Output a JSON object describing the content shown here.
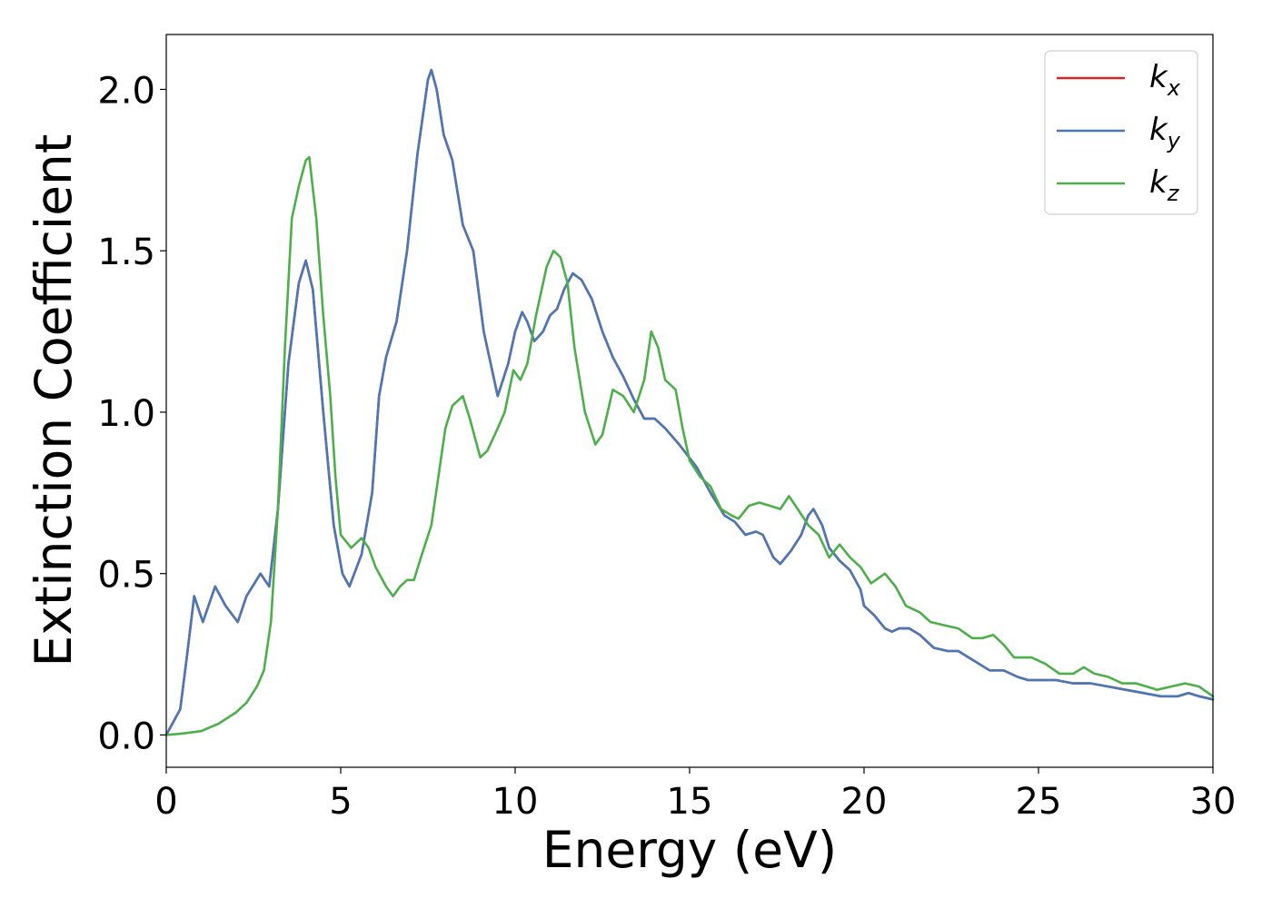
{
  "chart_data": {
    "type": "line",
    "title": "",
    "xlabel": "Energy (eV)",
    "ylabel": "Extinction Coefficient",
    "xlim": [
      0,
      30
    ],
    "ylim": [
      -0.1,
      2.17
    ],
    "xticks": [
      0,
      5,
      10,
      15,
      20,
      25,
      30
    ],
    "xtick_labels": [
      "0",
      "5",
      "10",
      "15",
      "20",
      "25",
      "30"
    ],
    "yticks": [
      0.0,
      0.5,
      1.0,
      1.5,
      2.0
    ],
    "ytick_labels": [
      "0.0",
      "0.5",
      "1.0",
      "1.5",
      "2.0"
    ],
    "grid": false,
    "legend_position": "top-right",
    "series": [
      {
        "name": "k_x",
        "legend_base": "k",
        "legend_sub": "x",
        "color": "#d62728",
        "points": [
          [
            0,
            0
          ],
          [
            0.4,
            0.08
          ],
          [
            0.6,
            0.25
          ],
          [
            0.8,
            0.43
          ],
          [
            1.05,
            0.35
          ],
          [
            1.4,
            0.46
          ],
          [
            1.7,
            0.4
          ],
          [
            2.05,
            0.35
          ],
          [
            2.3,
            0.43
          ],
          [
            2.7,
            0.5
          ],
          [
            2.95,
            0.46
          ],
          [
            3.2,
            0.7
          ],
          [
            3.5,
            1.15
          ],
          [
            3.8,
            1.4
          ],
          [
            4.0,
            1.47
          ],
          [
            4.2,
            1.38
          ],
          [
            4.5,
            1.0
          ],
          [
            4.8,
            0.65
          ],
          [
            5.05,
            0.5
          ],
          [
            5.25,
            0.46
          ],
          [
            5.6,
            0.56
          ],
          [
            5.9,
            0.75
          ],
          [
            6.1,
            1.05
          ],
          [
            6.3,
            1.17
          ],
          [
            6.6,
            1.28
          ],
          [
            6.9,
            1.5
          ],
          [
            7.2,
            1.8
          ],
          [
            7.5,
            2.03
          ],
          [
            7.6,
            2.06
          ],
          [
            7.75,
            2.0
          ],
          [
            7.95,
            1.86
          ],
          [
            8.2,
            1.78
          ],
          [
            8.5,
            1.58
          ],
          [
            8.8,
            1.5
          ],
          [
            9.1,
            1.25
          ],
          [
            9.5,
            1.05
          ],
          [
            9.8,
            1.15
          ],
          [
            10.0,
            1.25
          ],
          [
            10.2,
            1.31
          ],
          [
            10.35,
            1.28
          ],
          [
            10.55,
            1.22
          ],
          [
            10.8,
            1.25
          ],
          [
            11.0,
            1.3
          ],
          [
            11.2,
            1.32
          ],
          [
            11.4,
            1.38
          ],
          [
            11.65,
            1.43
          ],
          [
            11.9,
            1.41
          ],
          [
            12.2,
            1.35
          ],
          [
            12.5,
            1.25
          ],
          [
            12.8,
            1.17
          ],
          [
            13.1,
            1.11
          ],
          [
            13.4,
            1.04
          ],
          [
            13.7,
            0.98
          ],
          [
            14.0,
            0.98
          ],
          [
            14.3,
            0.95
          ],
          [
            14.7,
            0.9
          ],
          [
            15.2,
            0.83
          ],
          [
            15.6,
            0.75
          ],
          [
            16.0,
            0.68
          ],
          [
            16.3,
            0.66
          ],
          [
            16.6,
            0.62
          ],
          [
            16.9,
            0.63
          ],
          [
            17.1,
            0.62
          ],
          [
            17.4,
            0.55
          ],
          [
            17.6,
            0.53
          ],
          [
            17.9,
            0.57
          ],
          [
            18.2,
            0.62
          ],
          [
            18.4,
            0.68
          ],
          [
            18.55,
            0.7
          ],
          [
            18.8,
            0.65
          ],
          [
            19.0,
            0.58
          ],
          [
            19.3,
            0.54
          ],
          [
            19.6,
            0.51
          ],
          [
            19.9,
            0.45
          ],
          [
            20.0,
            0.4
          ],
          [
            20.3,
            0.37
          ],
          [
            20.6,
            0.33
          ],
          [
            20.8,
            0.32
          ],
          [
            21.0,
            0.33
          ],
          [
            21.3,
            0.33
          ],
          [
            21.6,
            0.31
          ],
          [
            22.0,
            0.27
          ],
          [
            22.4,
            0.26
          ],
          [
            22.7,
            0.26
          ],
          [
            23.0,
            0.24
          ],
          [
            23.3,
            0.22
          ],
          [
            23.6,
            0.2
          ],
          [
            24.0,
            0.2
          ],
          [
            24.4,
            0.18
          ],
          [
            24.7,
            0.17
          ],
          [
            25.1,
            0.17
          ],
          [
            25.5,
            0.17
          ],
          [
            26.0,
            0.16
          ],
          [
            26.5,
            0.16
          ],
          [
            27.0,
            0.15
          ],
          [
            27.5,
            0.14
          ],
          [
            28.0,
            0.13
          ],
          [
            28.5,
            0.12
          ],
          [
            29.0,
            0.12
          ],
          [
            29.3,
            0.13
          ],
          [
            29.6,
            0.12
          ],
          [
            30.0,
            0.11
          ]
        ]
      },
      {
        "name": "k_y",
        "legend_base": "k",
        "legend_sub": "y",
        "color": "#4a78b5",
        "points": [
          [
            0,
            0
          ],
          [
            0.4,
            0.08
          ],
          [
            0.6,
            0.25
          ],
          [
            0.8,
            0.43
          ],
          [
            1.05,
            0.35
          ],
          [
            1.4,
            0.46
          ],
          [
            1.7,
            0.4
          ],
          [
            2.05,
            0.35
          ],
          [
            2.3,
            0.43
          ],
          [
            2.7,
            0.5
          ],
          [
            2.95,
            0.46
          ],
          [
            3.2,
            0.7
          ],
          [
            3.5,
            1.15
          ],
          [
            3.8,
            1.4
          ],
          [
            4.0,
            1.47
          ],
          [
            4.2,
            1.38
          ],
          [
            4.5,
            1.0
          ],
          [
            4.8,
            0.65
          ],
          [
            5.05,
            0.5
          ],
          [
            5.25,
            0.46
          ],
          [
            5.6,
            0.56
          ],
          [
            5.9,
            0.75
          ],
          [
            6.1,
            1.05
          ],
          [
            6.3,
            1.17
          ],
          [
            6.6,
            1.28
          ],
          [
            6.9,
            1.5
          ],
          [
            7.2,
            1.8
          ],
          [
            7.5,
            2.03
          ],
          [
            7.6,
            2.06
          ],
          [
            7.75,
            2.0
          ],
          [
            7.95,
            1.86
          ],
          [
            8.2,
            1.78
          ],
          [
            8.5,
            1.58
          ],
          [
            8.8,
            1.5
          ],
          [
            9.1,
            1.25
          ],
          [
            9.5,
            1.05
          ],
          [
            9.8,
            1.15
          ],
          [
            10.0,
            1.25
          ],
          [
            10.2,
            1.31
          ],
          [
            10.35,
            1.28
          ],
          [
            10.55,
            1.22
          ],
          [
            10.8,
            1.25
          ],
          [
            11.0,
            1.3
          ],
          [
            11.2,
            1.32
          ],
          [
            11.4,
            1.38
          ],
          [
            11.65,
            1.43
          ],
          [
            11.9,
            1.41
          ],
          [
            12.2,
            1.35
          ],
          [
            12.5,
            1.25
          ],
          [
            12.8,
            1.17
          ],
          [
            13.1,
            1.11
          ],
          [
            13.4,
            1.04
          ],
          [
            13.7,
            0.98
          ],
          [
            14.0,
            0.98
          ],
          [
            14.3,
            0.95
          ],
          [
            14.7,
            0.9
          ],
          [
            15.2,
            0.83
          ],
          [
            15.6,
            0.75
          ],
          [
            16.0,
            0.68
          ],
          [
            16.3,
            0.66
          ],
          [
            16.6,
            0.62
          ],
          [
            16.9,
            0.63
          ],
          [
            17.1,
            0.62
          ],
          [
            17.4,
            0.55
          ],
          [
            17.6,
            0.53
          ],
          [
            17.9,
            0.57
          ],
          [
            18.2,
            0.62
          ],
          [
            18.4,
            0.68
          ],
          [
            18.55,
            0.7
          ],
          [
            18.8,
            0.65
          ],
          [
            19.0,
            0.58
          ],
          [
            19.3,
            0.54
          ],
          [
            19.6,
            0.51
          ],
          [
            19.9,
            0.45
          ],
          [
            20.0,
            0.4
          ],
          [
            20.3,
            0.37
          ],
          [
            20.6,
            0.33
          ],
          [
            20.8,
            0.32
          ],
          [
            21.0,
            0.33
          ],
          [
            21.3,
            0.33
          ],
          [
            21.6,
            0.31
          ],
          [
            22.0,
            0.27
          ],
          [
            22.4,
            0.26
          ],
          [
            22.7,
            0.26
          ],
          [
            23.0,
            0.24
          ],
          [
            23.3,
            0.22
          ],
          [
            23.6,
            0.2
          ],
          [
            24.0,
            0.2
          ],
          [
            24.4,
            0.18
          ],
          [
            24.7,
            0.17
          ],
          [
            25.1,
            0.17
          ],
          [
            25.5,
            0.17
          ],
          [
            26.0,
            0.16
          ],
          [
            26.5,
            0.16
          ],
          [
            27.0,
            0.15
          ],
          [
            27.5,
            0.14
          ],
          [
            28.0,
            0.13
          ],
          [
            28.5,
            0.12
          ],
          [
            29.0,
            0.12
          ],
          [
            29.3,
            0.13
          ],
          [
            29.6,
            0.12
          ],
          [
            30.0,
            0.11
          ]
        ]
      },
      {
        "name": "k_z",
        "legend_base": "k",
        "legend_sub": "z",
        "color": "#4daf4a",
        "points": [
          [
            0,
            0
          ],
          [
            0.5,
            0.005
          ],
          [
            1.0,
            0.012
          ],
          [
            1.5,
            0.035
          ],
          [
            2.0,
            0.07
          ],
          [
            2.3,
            0.1
          ],
          [
            2.6,
            0.15
          ],
          [
            2.8,
            0.2
          ],
          [
            3.0,
            0.35
          ],
          [
            3.2,
            0.7
          ],
          [
            3.4,
            1.2
          ],
          [
            3.6,
            1.6
          ],
          [
            3.8,
            1.7
          ],
          [
            4.0,
            1.78
          ],
          [
            4.1,
            1.79
          ],
          [
            4.3,
            1.6
          ],
          [
            4.5,
            1.3
          ],
          [
            4.7,
            1.05
          ],
          [
            4.85,
            0.8
          ],
          [
            5.0,
            0.62
          ],
          [
            5.3,
            0.58
          ],
          [
            5.6,
            0.61
          ],
          [
            5.8,
            0.58
          ],
          [
            6.0,
            0.52
          ],
          [
            6.3,
            0.46
          ],
          [
            6.5,
            0.43
          ],
          [
            6.7,
            0.46
          ],
          [
            6.9,
            0.48
          ],
          [
            7.1,
            0.48
          ],
          [
            7.3,
            0.55
          ],
          [
            7.6,
            0.65
          ],
          [
            7.8,
            0.8
          ],
          [
            8.0,
            0.95
          ],
          [
            8.2,
            1.02
          ],
          [
            8.5,
            1.05
          ],
          [
            8.7,
            0.98
          ],
          [
            9.0,
            0.86
          ],
          [
            9.2,
            0.88
          ],
          [
            9.5,
            0.95
          ],
          [
            9.7,
            1.0
          ],
          [
            9.95,
            1.13
          ],
          [
            10.15,
            1.1
          ],
          [
            10.35,
            1.15
          ],
          [
            10.6,
            1.3
          ],
          [
            10.9,
            1.45
          ],
          [
            11.1,
            1.5
          ],
          [
            11.3,
            1.48
          ],
          [
            11.5,
            1.4
          ],
          [
            11.7,
            1.2
          ],
          [
            12.0,
            1.0
          ],
          [
            12.3,
            0.9
          ],
          [
            12.5,
            0.93
          ],
          [
            12.8,
            1.07
          ],
          [
            13.1,
            1.05
          ],
          [
            13.4,
            1.0
          ],
          [
            13.7,
            1.1
          ],
          [
            13.9,
            1.25
          ],
          [
            14.1,
            1.2
          ],
          [
            14.3,
            1.1
          ],
          [
            14.6,
            1.07
          ],
          [
            14.8,
            0.95
          ],
          [
            15.0,
            0.85
          ],
          [
            15.3,
            0.8
          ],
          [
            15.6,
            0.77
          ],
          [
            15.9,
            0.7
          ],
          [
            16.2,
            0.68
          ],
          [
            16.4,
            0.67
          ],
          [
            16.7,
            0.71
          ],
          [
            17.0,
            0.72
          ],
          [
            17.3,
            0.71
          ],
          [
            17.6,
            0.7
          ],
          [
            17.85,
            0.74
          ],
          [
            18.1,
            0.7
          ],
          [
            18.4,
            0.65
          ],
          [
            18.7,
            0.62
          ],
          [
            19.0,
            0.55
          ],
          [
            19.3,
            0.59
          ],
          [
            19.6,
            0.55
          ],
          [
            19.9,
            0.52
          ],
          [
            20.2,
            0.47
          ],
          [
            20.6,
            0.5
          ],
          [
            20.9,
            0.46
          ],
          [
            21.2,
            0.4
          ],
          [
            21.6,
            0.38
          ],
          [
            21.9,
            0.35
          ],
          [
            22.3,
            0.34
          ],
          [
            22.7,
            0.33
          ],
          [
            23.1,
            0.3
          ],
          [
            23.4,
            0.3
          ],
          [
            23.7,
            0.31
          ],
          [
            24.0,
            0.28
          ],
          [
            24.3,
            0.24
          ],
          [
            24.8,
            0.24
          ],
          [
            25.2,
            0.22
          ],
          [
            25.6,
            0.19
          ],
          [
            26.0,
            0.19
          ],
          [
            26.3,
            0.21
          ],
          [
            26.6,
            0.19
          ],
          [
            27.0,
            0.18
          ],
          [
            27.4,
            0.16
          ],
          [
            27.8,
            0.16
          ],
          [
            28.1,
            0.15
          ],
          [
            28.4,
            0.14
          ],
          [
            28.8,
            0.15
          ],
          [
            29.2,
            0.16
          ],
          [
            29.6,
            0.15
          ],
          [
            30.0,
            0.12
          ]
        ]
      }
    ]
  }
}
